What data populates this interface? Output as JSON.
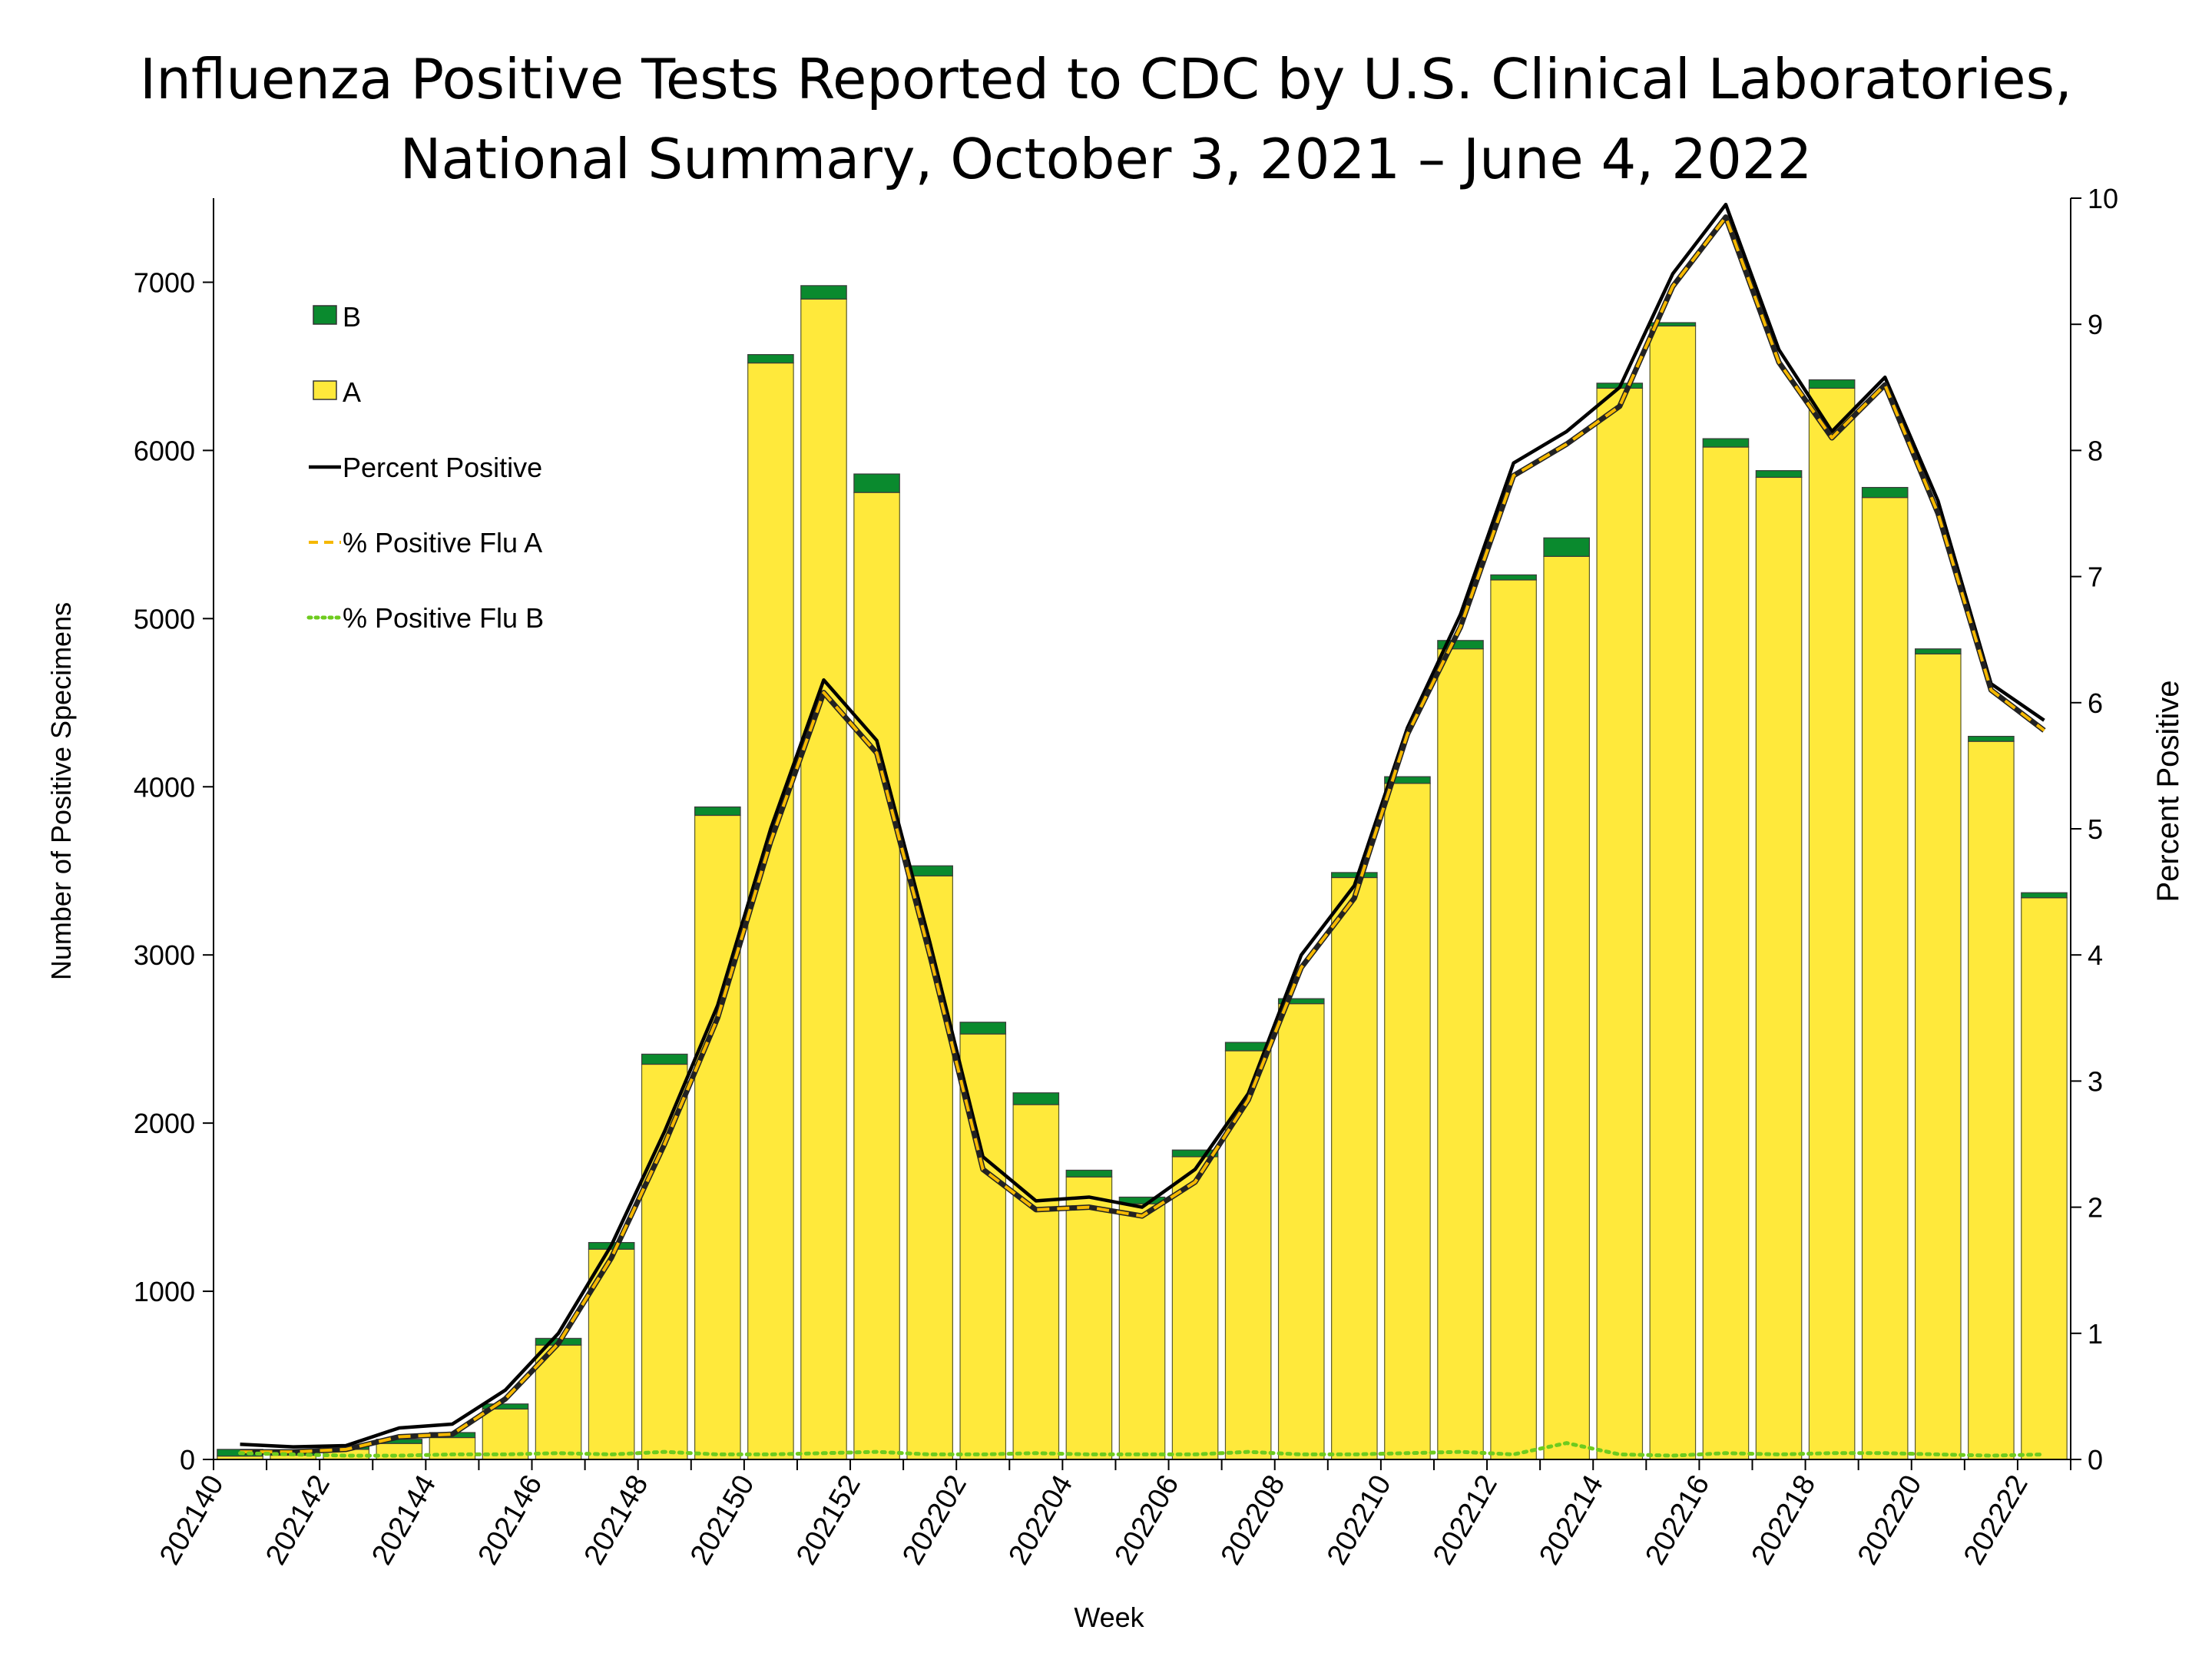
{
  "chart_data": {
    "type": "bar",
    "stacked": true,
    "title_lines": [
      "Influenza Positive Tests Reported to CDC by U.S. Clinical Laboratories,",
      "National Summary, October 3, 2021 – June 4, 2022"
    ],
    "xlabel": "Week",
    "ylabel_left": "Number of Positive Specimens",
    "ylabel_right": "Percent Positive",
    "ylim_left": [
      0,
      7500
    ],
    "ylim_right": [
      0,
      10
    ],
    "left_ticks": [
      0,
      1000,
      2000,
      3000,
      4000,
      5000,
      6000,
      7000
    ],
    "right_ticks": [
      0,
      1,
      2,
      3,
      4,
      5,
      6,
      7,
      8,
      9,
      10
    ],
    "weeks": [
      "202140",
      "202141",
      "202142",
      "202143",
      "202144",
      "202145",
      "202146",
      "202147",
      "202148",
      "202149",
      "202150",
      "202151",
      "202152",
      "202201",
      "202202",
      "202203",
      "202204",
      "202205",
      "202206",
      "202207",
      "202208",
      "202209",
      "202210",
      "202211",
      "202212",
      "202213",
      "202214",
      "202215",
      "202216",
      "202217",
      "202218",
      "202219",
      "202220",
      "202221",
      "202222"
    ],
    "week_tick_labels": [
      "202140",
      "202142",
      "202144",
      "202146",
      "202148",
      "202150",
      "202152",
      "202202",
      "202204",
      "202206",
      "202208",
      "202210",
      "202212",
      "202214",
      "202216",
      "202218",
      "202220",
      "202222"
    ],
    "series": [
      {
        "name": "B",
        "kind": "bar",
        "color": "#0a8a2e",
        "values": [
          40,
          20,
          20,
          25,
          30,
          30,
          40,
          40,
          60,
          50,
          50,
          80,
          110,
          60,
          70,
          70,
          40,
          40,
          40,
          50,
          30,
          30,
          40,
          50,
          30,
          110,
          30,
          20,
          50,
          40,
          50,
          60,
          30,
          30,
          30
        ]
      },
      {
        "name": "A",
        "kind": "bar",
        "color": "#ffe93b",
        "values": [
          20,
          25,
          60,
          95,
          130,
          300,
          680,
          1250,
          2350,
          3830,
          6520,
          6900,
          5750,
          3470,
          2530,
          2110,
          1680,
          1520,
          1800,
          2430,
          2710,
          3460,
          4020,
          4820,
          5230,
          5370,
          6370,
          6740,
          6020,
          5840,
          6370,
          5720,
          4790,
          4270,
          3340
        ]
      },
      {
        "name": "Percent Positive",
        "kind": "line",
        "color": "#000000",
        "values": [
          0.12,
          0.1,
          0.11,
          0.25,
          0.28,
          0.55,
          1.0,
          1.7,
          2.6,
          3.6,
          5.0,
          6.18,
          5.7,
          4.1,
          2.4,
          2.05,
          2.08,
          2.0,
          2.3,
          2.9,
          4.0,
          4.55,
          5.8,
          6.7,
          7.9,
          8.15,
          8.5,
          9.4,
          9.95,
          8.8,
          8.15,
          8.58,
          7.6,
          6.15,
          5.86
        ]
      },
      {
        "name": "% Positive Flu A",
        "kind": "line",
        "dash": "dashed",
        "color": "#f5b800",
        "values": [
          0.06,
          0.06,
          0.08,
          0.18,
          0.2,
          0.48,
          0.92,
          1.6,
          2.5,
          3.5,
          4.9,
          6.08,
          5.6,
          4.0,
          2.3,
          1.98,
          2.0,
          1.93,
          2.2,
          2.85,
          3.9,
          4.45,
          5.75,
          6.6,
          7.8,
          8.05,
          8.35,
          9.3,
          9.85,
          8.7,
          8.1,
          8.52,
          7.5,
          6.1,
          5.78
        ]
      },
      {
        "name": "% Positive Flu B",
        "kind": "line",
        "dash": "dotted",
        "color": "#6ecb1e",
        "values": [
          0.05,
          0.04,
          0.03,
          0.03,
          0.04,
          0.04,
          0.05,
          0.04,
          0.06,
          0.04,
          0.04,
          0.05,
          0.06,
          0.04,
          0.04,
          0.05,
          0.04,
          0.04,
          0.04,
          0.06,
          0.04,
          0.04,
          0.05,
          0.06,
          0.04,
          0.13,
          0.04,
          0.03,
          0.05,
          0.04,
          0.05,
          0.05,
          0.04,
          0.03,
          0.04
        ]
      }
    ],
    "legend_position": "top-left",
    "grid": false
  }
}
